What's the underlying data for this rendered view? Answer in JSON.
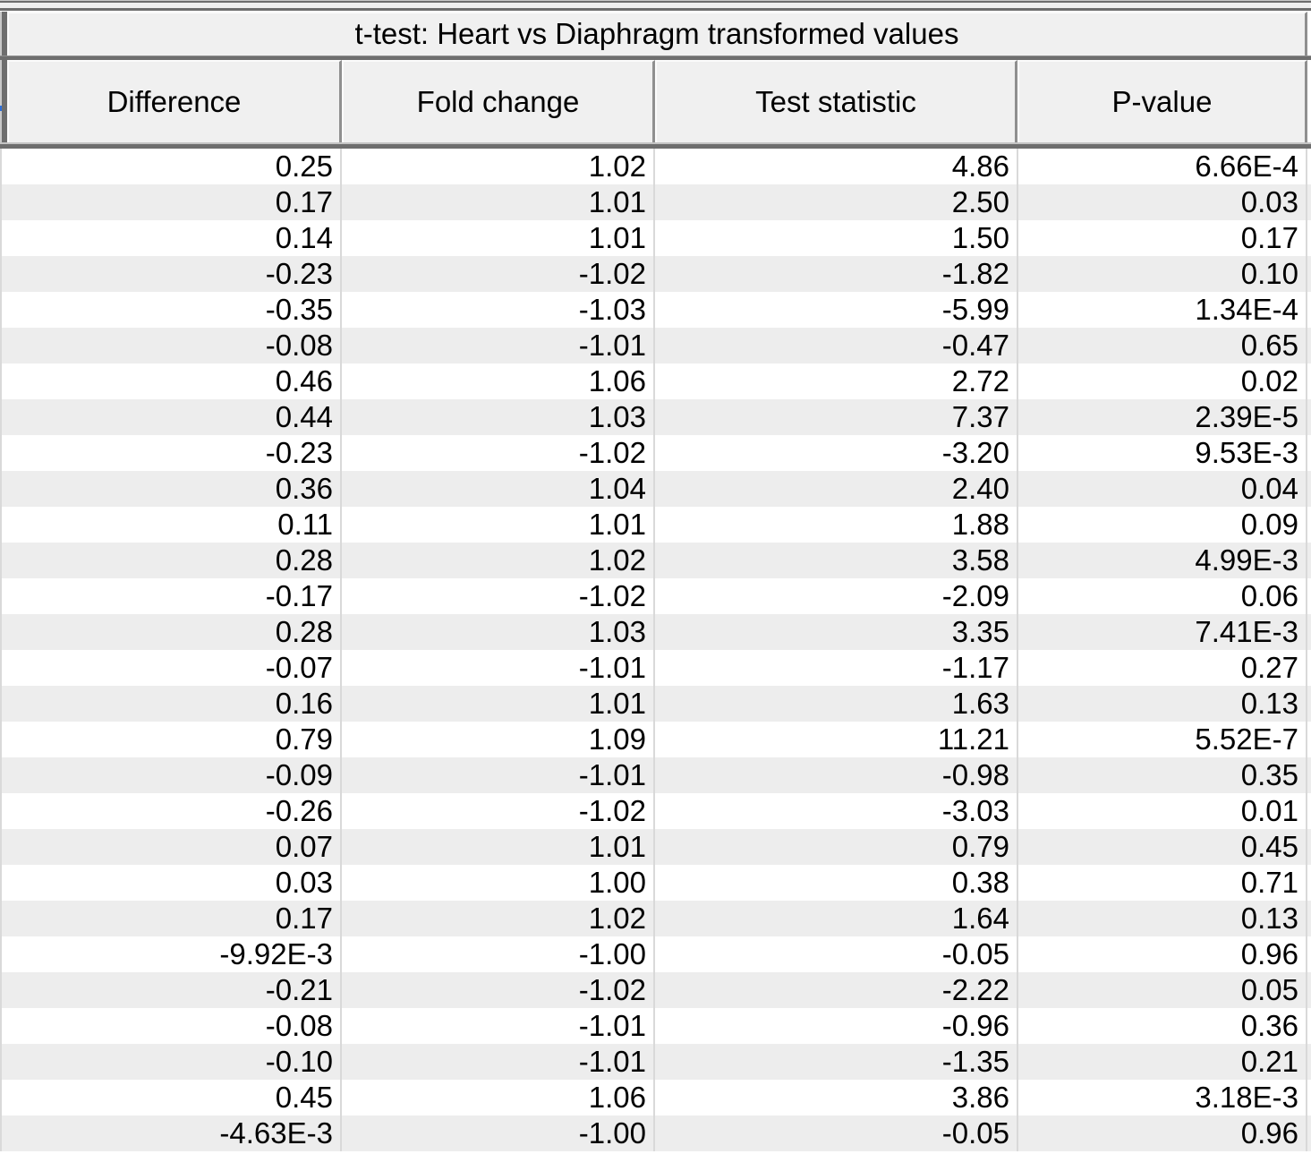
{
  "table": {
    "title": "t-test: Heart vs Diaphragm transformed values",
    "columns": [
      "Difference",
      "Fold change",
      "Test statistic",
      "P-value"
    ],
    "rows": [
      [
        "0.25",
        "1.02",
        "4.86",
        "6.66E-4"
      ],
      [
        "0.17",
        "1.01",
        "2.50",
        "0.03"
      ],
      [
        "0.14",
        "1.01",
        "1.50",
        "0.17"
      ],
      [
        "-0.23",
        "-1.02",
        "-1.82",
        "0.10"
      ],
      [
        "-0.35",
        "-1.03",
        "-5.99",
        "1.34E-4"
      ],
      [
        "-0.08",
        "-1.01",
        "-0.47",
        "0.65"
      ],
      [
        "0.46",
        "1.06",
        "2.72",
        "0.02"
      ],
      [
        "0.44",
        "1.03",
        "7.37",
        "2.39E-5"
      ],
      [
        "-0.23",
        "-1.02",
        "-3.20",
        "9.53E-3"
      ],
      [
        "0.36",
        "1.04",
        "2.40",
        "0.04"
      ],
      [
        "0.11",
        "1.01",
        "1.88",
        "0.09"
      ],
      [
        "0.28",
        "1.02",
        "3.58",
        "4.99E-3"
      ],
      [
        "-0.17",
        "-1.02",
        "-2.09",
        "0.06"
      ],
      [
        "0.28",
        "1.03",
        "3.35",
        "7.41E-3"
      ],
      [
        "-0.07",
        "-1.01",
        "-1.17",
        "0.27"
      ],
      [
        "0.16",
        "1.01",
        "1.63",
        "0.13"
      ],
      [
        "0.79",
        "1.09",
        "11.21",
        "5.52E-7"
      ],
      [
        "-0.09",
        "-1.01",
        "-0.98",
        "0.35"
      ],
      [
        "-0.26",
        "-1.02",
        "-3.03",
        "0.01"
      ],
      [
        "0.07",
        "1.01",
        "0.79",
        "0.45"
      ],
      [
        "0.03",
        "1.00",
        "0.38",
        "0.71"
      ],
      [
        "0.17",
        "1.02",
        "1.64",
        "0.13"
      ],
      [
        "-9.92E-3",
        "-1.00",
        "-0.05",
        "0.96"
      ],
      [
        "-0.21",
        "-1.02",
        "-2.22",
        "0.05"
      ],
      [
        "-0.08",
        "-1.01",
        "-0.96",
        "0.36"
      ],
      [
        "-0.10",
        "-1.01",
        "-1.35",
        "0.21"
      ],
      [
        "0.45",
        "1.06",
        "3.86",
        "3.18E-3"
      ],
      [
        "-4.63E-3",
        "-1.00",
        "-0.05",
        "0.96"
      ]
    ]
  },
  "colors": {
    "header_fill": "#f0f0f0",
    "alt_row_fill": "#ededed",
    "grid_line": "#d9d9d9",
    "frame_dark": "#6e6e6e",
    "frame_mid": "#8f8f8f",
    "frame_light": "#c9c9c9",
    "bevel_light": "#fbfbfb",
    "bevel_shadow": "#c4c4c4",
    "accent_blue": "#2e6fd9"
  }
}
